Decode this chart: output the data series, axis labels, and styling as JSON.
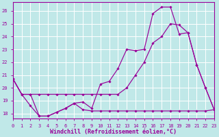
{
  "background_color": "#c0e8e8",
  "grid_color": "#aad4d4",
  "line_color": "#990099",
  "xlim": [
    0,
    23
  ],
  "ylim": [
    17.6,
    26.7
  ],
  "yticks": [
    18,
    19,
    20,
    21,
    22,
    23,
    24,
    25,
    26
  ],
  "xticks": [
    0,
    1,
    2,
    3,
    4,
    5,
    6,
    7,
    8,
    9,
    10,
    11,
    12,
    13,
    14,
    15,
    16,
    17,
    18,
    19,
    20,
    21,
    22,
    23
  ],
  "xlabel": "Windchill (Refroidissement éolien,°C)",
  "curve1_x": [
    0,
    1,
    2,
    3,
    4,
    5,
    6,
    7,
    8,
    9,
    10,
    11,
    12,
    13,
    14,
    15,
    16,
    17,
    18,
    19,
    20,
    21,
    22,
    23
  ],
  "curve1_y": [
    20.7,
    19.5,
    18.6,
    17.8,
    17.8,
    18.1,
    18.4,
    18.8,
    18.9,
    18.4,
    20.3,
    20.5,
    21.5,
    23.0,
    22.9,
    23.0,
    25.8,
    26.3,
    26.3,
    24.2,
    24.3,
    21.8,
    20.0,
    18.3
  ],
  "curve2_x": [
    0,
    1,
    2,
    3,
    4,
    5,
    6,
    7,
    8,
    9,
    10,
    11,
    12,
    13,
    14,
    15,
    16,
    17,
    18,
    19,
    20,
    21,
    22,
    23
  ],
  "curve2_y": [
    20.7,
    19.5,
    19.5,
    19.5,
    19.5,
    19.5,
    19.5,
    19.5,
    19.5,
    19.5,
    19.5,
    19.5,
    19.5,
    20.0,
    21.0,
    22.0,
    23.5,
    24.0,
    25.0,
    24.9,
    24.3,
    21.8,
    20.0,
    18.3
  ],
  "curve3_x": [
    0,
    1,
    2,
    3,
    4,
    5,
    6,
    7,
    8,
    9,
    10,
    11,
    12,
    13,
    14,
    15,
    16,
    17,
    18,
    19,
    20,
    21,
    22,
    23
  ],
  "curve3_y": [
    20.7,
    19.5,
    19.5,
    17.8,
    17.8,
    18.1,
    18.4,
    18.8,
    18.3,
    18.2,
    18.2,
    18.2,
    18.2,
    18.2,
    18.2,
    18.2,
    18.2,
    18.2,
    18.2,
    18.2,
    18.2,
    18.2,
    18.2,
    18.3
  ],
  "markersize": 1.8,
  "linewidth": 0.85,
  "tick_fontsize": 5.0,
  "label_fontsize": 6.0
}
